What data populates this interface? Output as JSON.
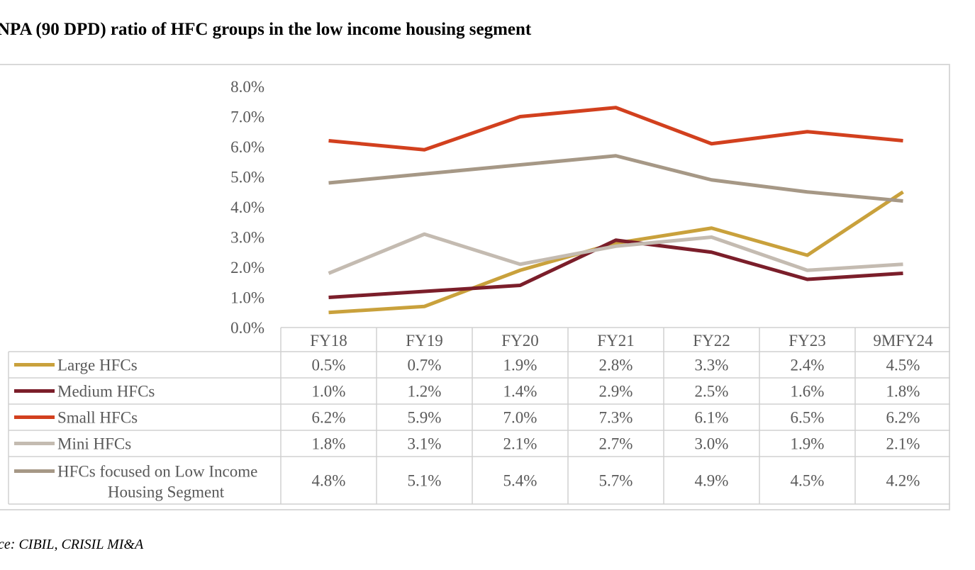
{
  "title": "NPA (90 DPD) ratio of HFC groups in the low income housing segment",
  "source": "rce: CIBIL, CRISIL MI&A",
  "chart_data": {
    "type": "line",
    "categories": [
      "FY18",
      "FY19",
      "FY20",
      "FY21",
      "FY22",
      "FY23",
      "9MFY24"
    ],
    "y_ticks": [
      "0.0%",
      "1.0%",
      "2.0%",
      "3.0%",
      "4.0%",
      "5.0%",
      "6.0%",
      "7.0%",
      "8.0%"
    ],
    "ylim": [
      0,
      8
    ],
    "grid": false,
    "legend": "data-table",
    "series": [
      {
        "name": "Large HFCs",
        "name_lines": [
          "Large HFCs"
        ],
        "color": "#c9a13c",
        "values": [
          0.5,
          0.7,
          1.9,
          2.8,
          3.3,
          2.4,
          4.5
        ],
        "labels": [
          "0.5%",
          "0.7%",
          "1.9%",
          "2.8%",
          "3.3%",
          "2.4%",
          "4.5%"
        ]
      },
      {
        "name": "Medium HFCs",
        "name_lines": [
          "Medium HFCs"
        ],
        "color": "#7b1e2a",
        "values": [
          1.0,
          1.2,
          1.4,
          2.9,
          2.5,
          1.6,
          1.8
        ],
        "labels": [
          "1.0%",
          "1.2%",
          "1.4%",
          "2.9%",
          "2.5%",
          "1.6%",
          "1.8%"
        ]
      },
      {
        "name": "Small HFCs",
        "name_lines": [
          "Small HFCs"
        ],
        "color": "#d2401e",
        "values": [
          6.2,
          5.9,
          7.0,
          7.3,
          6.1,
          6.5,
          6.2
        ],
        "labels": [
          "6.2%",
          "5.9%",
          "7.0%",
          "7.3%",
          "6.1%",
          "6.5%",
          "6.2%"
        ]
      },
      {
        "name": "Mini HFCs",
        "name_lines": [
          "Mini HFCs"
        ],
        "color": "#c4bbb1",
        "values": [
          1.8,
          3.1,
          2.1,
          2.7,
          3.0,
          1.9,
          2.1
        ],
        "labels": [
          "1.8%",
          "3.1%",
          "2.1%",
          "2.7%",
          "3.0%",
          "1.9%",
          "2.1%"
        ]
      },
      {
        "name": "HFCs focused on Low Income Housing Segment",
        "name_lines": [
          "HFCs focused on Low Income",
          "Housing Segment"
        ],
        "color": "#a69886",
        "values": [
          4.8,
          5.1,
          5.4,
          5.7,
          4.9,
          4.5,
          4.2
        ],
        "labels": [
          "4.8%",
          "5.1%",
          "5.4%",
          "5.7%",
          "4.9%",
          "4.5%",
          "4.2%"
        ]
      }
    ]
  }
}
